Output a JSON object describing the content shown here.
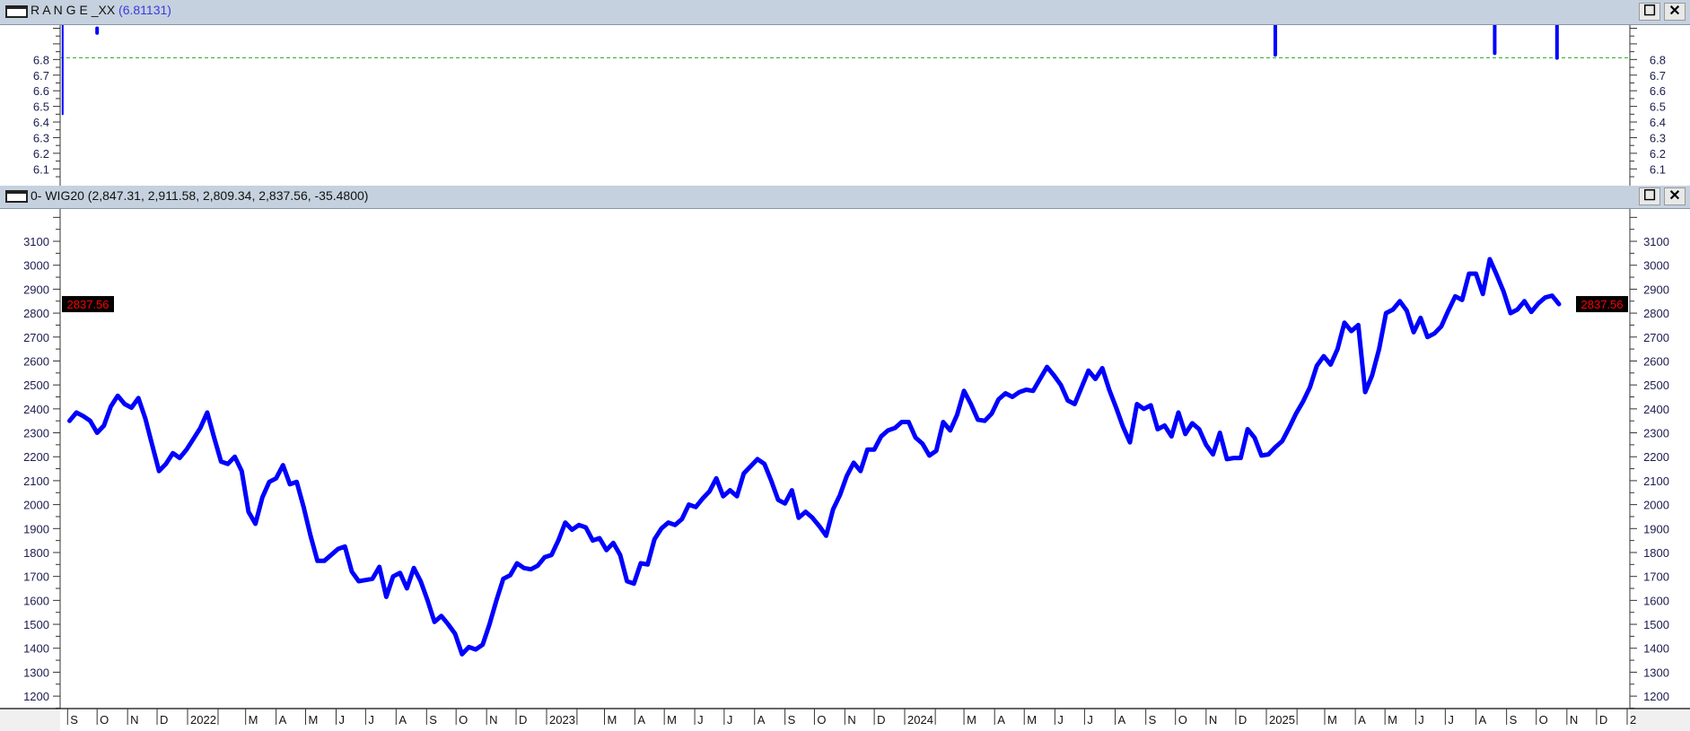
{
  "panels": [
    {
      "title_name": "R A N G E _XX",
      "title_value": "(6.81131)",
      "maximize": "☐",
      "close": "✕"
    },
    {
      "title": "0- WIG20 (2,847.31, 2,911.58, 2,809.34, 2,837.56, -35.4800)",
      "maximize": "☐",
      "close": "✕"
    }
  ],
  "chart_data": [
    {
      "type": "line",
      "title": "R A N G E _XX (6.81131)",
      "ylim": [
        6.01,
        7.02
      ],
      "yticks": [
        "6.1",
        "6.2",
        "6.3",
        "6.4",
        "6.5",
        "6.6",
        "6.7",
        "6.8"
      ],
      "reference_line": {
        "value": 6.81131,
        "style": "dashed",
        "color": "#22aa22"
      },
      "color": "#0000ff",
      "segments": [
        {
          "date": "2021-08-27",
          "from": 7.05,
          "to": 6.45
        },
        {
          "date": "2021-10-01",
          "from": 7.0,
          "to": 6.97
        },
        {
          "date": "2025-01-10",
          "from": 7.05,
          "to": 6.83
        },
        {
          "date": "2025-08-20",
          "from": 7.05,
          "to": 6.84
        },
        {
          "date": "2025-10-22",
          "from": 7.05,
          "to": 6.81
        }
      ]
    },
    {
      "type": "line",
      "title": "0- WIG20 (2,847.31, 2,911.58, 2,809.34, 2,837.56, -35.4800)",
      "ylim": [
        1148,
        3235
      ],
      "yticks": [
        "1200",
        "1300",
        "1400",
        "1500",
        "1600",
        "1700",
        "1800",
        "1900",
        "2000",
        "2100",
        "2200",
        "2300",
        "2400",
        "2500",
        "2600",
        "2700",
        "2800",
        "2900",
        "3000",
        "3100"
      ],
      "last_price_label": "2837.56",
      "last_price": 2837.56,
      "color": "#0000ff",
      "label_colors": {
        "price_box_bg": "#000000",
        "price_box_text": "#ff0000"
      },
      "xticks": [
        {
          "date": "2021-09-01",
          "label": "S"
        },
        {
          "date": "2021-10-01",
          "label": "O"
        },
        {
          "date": "2021-11-01",
          "label": "N"
        },
        {
          "date": "2021-12-01",
          "label": "D"
        },
        {
          "date": "2022-01-01",
          "label": "2022"
        },
        {
          "date": "2022-02-01",
          "label": ""
        },
        {
          "date": "2022-03-01",
          "label": "M"
        },
        {
          "date": "2022-04-01",
          "label": "A"
        },
        {
          "date": "2022-05-01",
          "label": "M"
        },
        {
          "date": "2022-06-01",
          "label": "J"
        },
        {
          "date": "2022-07-01",
          "label": "J"
        },
        {
          "date": "2022-08-01",
          "label": "A"
        },
        {
          "date": "2022-09-01",
          "label": "S"
        },
        {
          "date": "2022-10-01",
          "label": "O"
        },
        {
          "date": "2022-11-01",
          "label": "N"
        },
        {
          "date": "2022-12-01",
          "label": "D"
        },
        {
          "date": "2023-01-01",
          "label": "2023"
        },
        {
          "date": "2023-02-01",
          "label": ""
        },
        {
          "date": "2023-03-01",
          "label": "M"
        },
        {
          "date": "2023-04-01",
          "label": "A"
        },
        {
          "date": "2023-05-01",
          "label": "M"
        },
        {
          "date": "2023-06-01",
          "label": "J"
        },
        {
          "date": "2023-07-01",
          "label": "J"
        },
        {
          "date": "2023-08-01",
          "label": "A"
        },
        {
          "date": "2023-09-01",
          "label": "S"
        },
        {
          "date": "2023-10-01",
          "label": "O"
        },
        {
          "date": "2023-11-01",
          "label": "N"
        },
        {
          "date": "2023-12-01",
          "label": "D"
        },
        {
          "date": "2024-01-01",
          "label": "2024"
        },
        {
          "date": "2024-02-01",
          "label": ""
        },
        {
          "date": "2024-03-01",
          "label": "M"
        },
        {
          "date": "2024-04-01",
          "label": "A"
        },
        {
          "date": "2024-05-01",
          "label": "M"
        },
        {
          "date": "2024-06-01",
          "label": "J"
        },
        {
          "date": "2024-07-01",
          "label": "J"
        },
        {
          "date": "2024-08-01",
          "label": "A"
        },
        {
          "date": "2024-09-01",
          "label": "S"
        },
        {
          "date": "2024-10-01",
          "label": "O"
        },
        {
          "date": "2024-11-01",
          "label": "N"
        },
        {
          "date": "2024-12-01",
          "label": "D"
        },
        {
          "date": "2025-01-01",
          "label": "2025"
        },
        {
          "date": "2025-02-01",
          "label": ""
        },
        {
          "date": "2025-03-01",
          "label": "M"
        },
        {
          "date": "2025-04-01",
          "label": "A"
        },
        {
          "date": "2025-05-01",
          "label": "M"
        },
        {
          "date": "2025-06-01",
          "label": "J"
        },
        {
          "date": "2025-07-01",
          "label": "J"
        },
        {
          "date": "2025-08-01",
          "label": "A"
        },
        {
          "date": "2025-09-01",
          "label": "S"
        },
        {
          "date": "2025-10-01",
          "label": "O"
        },
        {
          "date": "2025-11-01",
          "label": "N"
        },
        {
          "date": "2025-12-01",
          "label": "D"
        },
        {
          "date": "2026-01-01",
          "label": "2"
        }
      ],
      "x": [
        "2021-09-03",
        "2021-09-10",
        "2021-09-17",
        "2021-09-24",
        "2021-10-01",
        "2021-10-08",
        "2021-10-15",
        "2021-10-22",
        "2021-10-29",
        "2021-11-05",
        "2021-11-12",
        "2021-11-19",
        "2021-11-26",
        "2021-12-03",
        "2021-12-10",
        "2021-12-17",
        "2021-12-24",
        "2021-12-31",
        "2022-01-07",
        "2022-01-14",
        "2022-01-21",
        "2022-01-28",
        "2022-02-04",
        "2022-02-11",
        "2022-02-18",
        "2022-02-25",
        "2022-03-04",
        "2022-03-11",
        "2022-03-18",
        "2022-03-25",
        "2022-04-01",
        "2022-04-08",
        "2022-04-15",
        "2022-04-22",
        "2022-04-29",
        "2022-05-06",
        "2022-05-13",
        "2022-05-20",
        "2022-05-27",
        "2022-06-03",
        "2022-06-10",
        "2022-06-17",
        "2022-06-24",
        "2022-07-01",
        "2022-07-08",
        "2022-07-15",
        "2022-07-22",
        "2022-07-29",
        "2022-08-05",
        "2022-08-12",
        "2022-08-19",
        "2022-08-26",
        "2022-09-02",
        "2022-09-09",
        "2022-09-16",
        "2022-09-23",
        "2022-09-30",
        "2022-10-07",
        "2022-10-14",
        "2022-10-21",
        "2022-10-28",
        "2022-11-04",
        "2022-11-11",
        "2022-11-18",
        "2022-11-25",
        "2022-12-02",
        "2022-12-09",
        "2022-12-16",
        "2022-12-23",
        "2022-12-30",
        "2023-01-06",
        "2023-01-13",
        "2023-01-20",
        "2023-01-27",
        "2023-02-03",
        "2023-02-10",
        "2023-02-17",
        "2023-02-24",
        "2023-03-03",
        "2023-03-10",
        "2023-03-17",
        "2023-03-24",
        "2023-03-31",
        "2023-04-07",
        "2023-04-14",
        "2023-04-21",
        "2023-04-28",
        "2023-05-05",
        "2023-05-12",
        "2023-05-19",
        "2023-05-26",
        "2023-06-02",
        "2023-06-09",
        "2023-06-16",
        "2023-06-23",
        "2023-06-30",
        "2023-07-07",
        "2023-07-14",
        "2023-07-21",
        "2023-07-28",
        "2023-08-04",
        "2023-08-11",
        "2023-08-18",
        "2023-08-25",
        "2023-09-01",
        "2023-09-08",
        "2023-09-15",
        "2023-09-22",
        "2023-09-29",
        "2023-10-06",
        "2023-10-13",
        "2023-10-20",
        "2023-10-27",
        "2023-11-03",
        "2023-11-10",
        "2023-11-17",
        "2023-11-24",
        "2023-12-01",
        "2023-12-08",
        "2023-12-15",
        "2023-12-22",
        "2023-12-29",
        "2024-01-05",
        "2024-01-12",
        "2024-01-19",
        "2024-01-26",
        "2024-02-02",
        "2024-02-09",
        "2024-02-16",
        "2024-02-23",
        "2024-03-01",
        "2024-03-08",
        "2024-03-15",
        "2024-03-22",
        "2024-03-29",
        "2024-04-05",
        "2024-04-12",
        "2024-04-19",
        "2024-04-26",
        "2024-05-03",
        "2024-05-10",
        "2024-05-17",
        "2024-05-24",
        "2024-05-31",
        "2024-06-07",
        "2024-06-14",
        "2024-06-21",
        "2024-06-28",
        "2024-07-05",
        "2024-07-12",
        "2024-07-19",
        "2024-07-26",
        "2024-08-02",
        "2024-08-09",
        "2024-08-16",
        "2024-08-23",
        "2024-08-30",
        "2024-09-06",
        "2024-09-13",
        "2024-09-20",
        "2024-09-27",
        "2024-10-04",
        "2024-10-11",
        "2024-10-18",
        "2024-10-25",
        "2024-11-01",
        "2024-11-08",
        "2024-11-15",
        "2024-11-22",
        "2024-11-29",
        "2024-12-06",
        "2024-12-13",
        "2024-12-20",
        "2024-12-27",
        "2025-01-03",
        "2025-01-10",
        "2025-01-17",
        "2025-01-24",
        "2025-01-31",
        "2025-02-07",
        "2025-02-14",
        "2025-02-21",
        "2025-02-28",
        "2025-03-07",
        "2025-03-14",
        "2025-03-21",
        "2025-03-28",
        "2025-04-04",
        "2025-04-11",
        "2025-04-18",
        "2025-04-25",
        "2025-05-02",
        "2025-05-09",
        "2025-05-16",
        "2025-05-23",
        "2025-05-30",
        "2025-06-06",
        "2025-06-13",
        "2025-06-20",
        "2025-06-27",
        "2025-07-04",
        "2025-07-11",
        "2025-07-18",
        "2025-07-25",
        "2025-08-01",
        "2025-08-08",
        "2025-08-15",
        "2025-08-22",
        "2025-08-29",
        "2025-09-05",
        "2025-09-12",
        "2025-09-19",
        "2025-09-26",
        "2025-10-03",
        "2025-10-10",
        "2025-10-17",
        "2025-10-24"
      ],
      "y": [
        2350,
        2385,
        2370,
        2350,
        2300,
        2330,
        2410,
        2455,
        2420,
        2405,
        2445,
        2360,
        2250,
        2140,
        2170,
        2215,
        2195,
        2230,
        2275,
        2320,
        2385,
        2280,
        2180,
        2170,
        2200,
        2140,
        1970,
        1920,
        2030,
        2095,
        2110,
        2165,
        2085,
        2095,
        1990,
        1870,
        1765,
        1765,
        1790,
        1815,
        1825,
        1720,
        1680,
        1685,
        1690,
        1740,
        1615,
        1700,
        1715,
        1650,
        1735,
        1680,
        1600,
        1510,
        1535,
        1500,
        1460,
        1375,
        1405,
        1395,
        1415,
        1500,
        1600,
        1690,
        1705,
        1755,
        1735,
        1730,
        1745,
        1780,
        1790,
        1850,
        1925,
        1895,
        1915,
        1905,
        1850,
        1860,
        1810,
        1840,
        1790,
        1680,
        1670,
        1755,
        1750,
        1855,
        1900,
        1925,
        1915,
        1940,
        2000,
        1990,
        2025,
        2055,
        2110,
        2035,
        2060,
        2035,
        2130,
        2160,
        2190,
        2170,
        2100,
        2020,
        2005,
        2060,
        1945,
        1970,
        1945,
        1910,
        1870,
        1980,
        2040,
        2120,
        2175,
        2140,
        2230,
        2230,
        2285,
        2310,
        2320,
        2345,
        2345,
        2280,
        2255,
        2205,
        2225,
        2345,
        2310,
        2375,
        2475,
        2420,
        2355,
        2350,
        2380,
        2440,
        2465,
        2450,
        2470,
        2480,
        2475,
        2525,
        2575,
        2540,
        2500,
        2435,
        2420,
        2490,
        2560,
        2525,
        2570,
        2480,
        2405,
        2325,
        2260,
        2420,
        2400,
        2415,
        2315,
        2330,
        2285,
        2385,
        2295,
        2340,
        2315,
        2250,
        2210,
        2300,
        2190,
        2195,
        2195,
        2315,
        2280,
        2205,
        2210,
        2240,
        2265,
        2320,
        2380,
        2430,
        2490,
        2580,
        2620,
        2585,
        2650,
        2760,
        2725,
        2750,
        2470,
        2540,
        2650,
        2800,
        2815,
        2850,
        2810,
        2720,
        2780,
        2700,
        2715,
        2745,
        2810,
        2870,
        2855,
        2965,
        2965,
        2880,
        3025,
        2960,
        2890,
        2800,
        2815,
        2850,
        2805,
        2840,
        2865,
        2873,
        2837.56
      ]
    }
  ]
}
